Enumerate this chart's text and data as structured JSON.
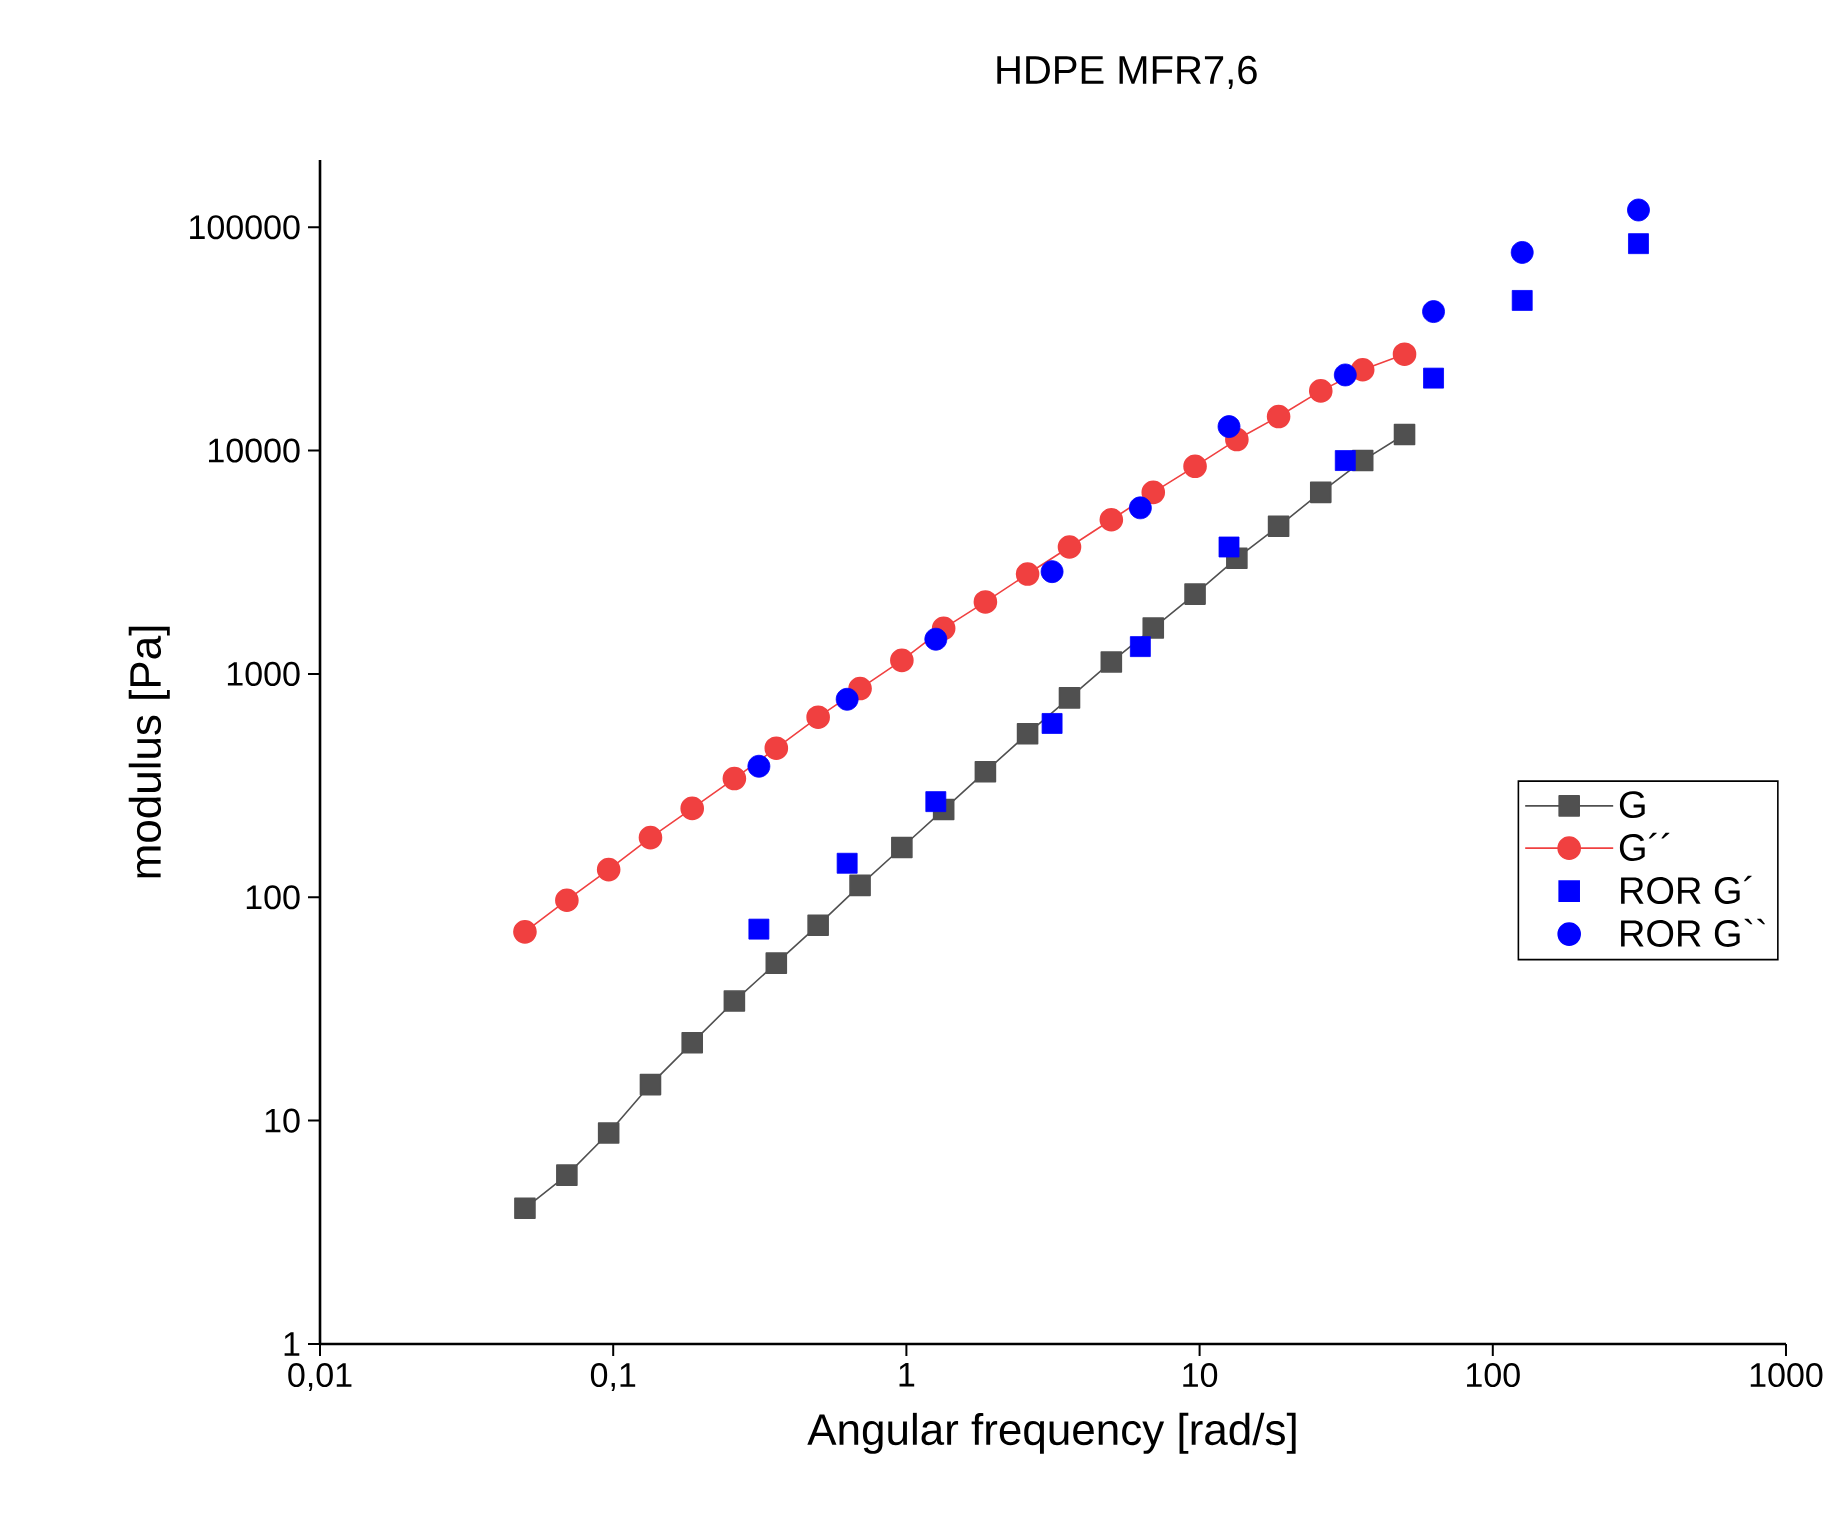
{
  "chart_data": {
    "type": "line",
    "title": "HDPE MFR7,6",
    "xlabel": "Angular frequency [rad/s]",
    "ylabel": "modulus [Pa]",
    "log": "xy",
    "grid": false,
    "legend": "right",
    "xlim": [
      0.01,
      1000
    ],
    "ylim": [
      1,
      200000
    ],
    "xticks": [
      {
        "value": 0.01,
        "label": "0,01"
      },
      {
        "value": 0.1,
        "label": "0,1"
      },
      1,
      10,
      100,
      1000
    ],
    "yticks": [
      1,
      10,
      100,
      1000,
      10000,
      100000
    ],
    "series": [
      {
        "name": "G",
        "type": "line",
        "marker": "square",
        "line_style": "solid",
        "color": "#505050",
        "x": [
          0.05,
          0.0695,
          0.0965,
          0.134,
          0.186,
          0.259,
          0.36,
          0.5,
          0.695,
          0.965,
          1.34,
          1.86,
          2.59,
          3.6,
          5,
          6.95,
          9.65,
          13.4,
          18.6,
          25.9,
          36,
          50
        ],
        "values": [
          4.05,
          5.7,
          8.8,
          14.5,
          22.3,
          34.3,
          50.7,
          75,
          113,
          167,
          247,
          365,
          540,
          781,
          1131,
          1605,
          2277,
          3296,
          4580,
          6500,
          9020,
          11800
        ]
      },
      {
        "name": "G´´",
        "type": "line",
        "marker": "circle",
        "line_style": "solid",
        "color": "#f04040",
        "x": [
          0.05,
          0.0695,
          0.0965,
          0.134,
          0.186,
          0.259,
          0.36,
          0.5,
          0.695,
          0.965,
          1.34,
          1.86,
          2.59,
          3.6,
          5,
          6.95,
          9.65,
          13.4,
          18.6,
          25.9,
          36,
          50
        ],
        "values": [
          70,
          97,
          133,
          185,
          250,
          340,
          465,
          640,
          860,
          1150,
          1600,
          2100,
          2800,
          3700,
          4900,
          6500,
          8500,
          11200,
          14200,
          18500,
          23000,
          27000
        ]
      },
      {
        "name": "ROR G´",
        "type": "scatter",
        "marker": "square",
        "color": "#0000ff",
        "x": [
          0.314,
          0.628,
          1.26,
          3.14,
          6.28,
          12.6,
          31.4,
          62.8,
          126,
          314
        ],
        "values": [
          72,
          142,
          268,
          600,
          1325,
          3700,
          9020,
          21100,
          47000,
          84400
        ]
      },
      {
        "name": "ROR G``",
        "type": "scatter",
        "marker": "circle",
        "color": "#0000ff",
        "x": [
          0.314,
          0.628,
          1.26,
          3.14,
          6.28,
          12.6,
          31.4,
          62.8,
          126,
          314
        ],
        "values": [
          386,
          770,
          1430,
          2870,
          5540,
          12800,
          21800,
          41900,
          77100,
          119400
        ]
      }
    ]
  }
}
